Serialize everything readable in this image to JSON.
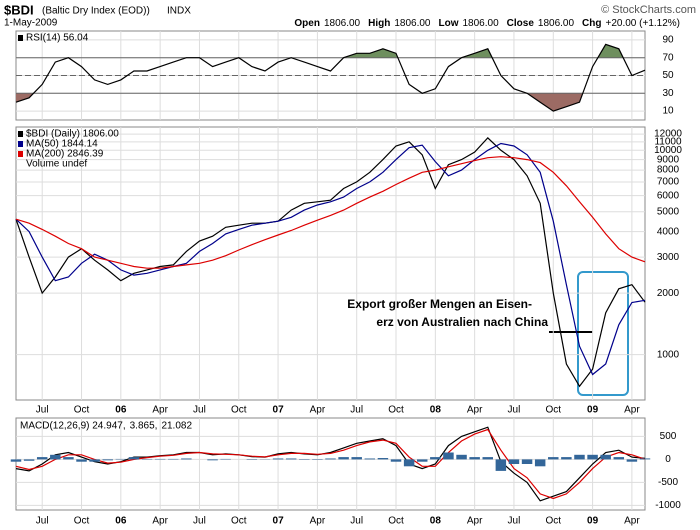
{
  "header": {
    "symbol": "$BDI",
    "name": "(Baltic Dry Index (EOD))",
    "exchange": "INDX",
    "date": "1-May-2009",
    "copyright": "© StockCharts.com",
    "quote": [
      [
        "Open",
        "1806.00"
      ],
      [
        "High",
        "1806.00"
      ],
      [
        "Low",
        "1806.00"
      ],
      [
        "Close",
        "1806.00"
      ],
      [
        "Chg",
        "+20.00 (+1.12%)"
      ]
    ]
  },
  "chart_data": [
    {
      "type": "line",
      "xlim": [
        "2005-05",
        "2009-05"
      ],
      "x": [
        "2005-05",
        "2005-06",
        "2005-07",
        "2005-08",
        "2005-09",
        "2005-10",
        "2005-11",
        "2005-12",
        "2006-01",
        "2006-02",
        "2006-03",
        "2006-04",
        "2006-05",
        "2006-06",
        "2006-07",
        "2006-08",
        "2006-09",
        "2006-10",
        "2006-11",
        "2006-12",
        "2007-01",
        "2007-02",
        "2007-03",
        "2007-04",
        "2007-05",
        "2007-06",
        "2007-07",
        "2007-08",
        "2007-09",
        "2007-10",
        "2007-11",
        "2007-12",
        "2008-01",
        "2008-02",
        "2008-03",
        "2008-04",
        "2008-05",
        "2008-06",
        "2008-07",
        "2008-08",
        "2008-09",
        "2008-10",
        "2008-11",
        "2008-12",
        "2009-01",
        "2009-02",
        "2009-03",
        "2009-04",
        "2009-05"
      ],
      "ylim": [
        0,
        100
      ],
      "yticks": [
        10,
        30,
        50,
        70,
        90
      ],
      "overbought": 70,
      "oversold": 30,
      "midline": 50,
      "overbought_color": "#6e8f5e",
      "oversold_color": "#9c6b64",
      "series": [
        {
          "name": "RSI(14) 56.04",
          "color": "#000000",
          "values": [
            20,
            25,
            40,
            65,
            70,
            60,
            45,
            40,
            45,
            55,
            55,
            60,
            65,
            70,
            70,
            60,
            65,
            70,
            60,
            55,
            65,
            70,
            65,
            60,
            55,
            70,
            75,
            75,
            80,
            75,
            40,
            30,
            35,
            60,
            70,
            75,
            80,
            50,
            35,
            30,
            20,
            10,
            15,
            20,
            60,
            85,
            80,
            50,
            56
          ]
        }
      ]
    },
    {
      "type": "line",
      "log": true,
      "xlim": [
        "2005-05",
        "2009-05"
      ],
      "x": [
        "2005-05",
        "2005-06",
        "2005-07",
        "2005-08",
        "2005-09",
        "2005-10",
        "2005-11",
        "2005-12",
        "2006-01",
        "2006-02",
        "2006-03",
        "2006-04",
        "2006-05",
        "2006-06",
        "2006-07",
        "2006-08",
        "2006-09",
        "2006-10",
        "2006-11",
        "2006-12",
        "2007-01",
        "2007-02",
        "2007-03",
        "2007-04",
        "2007-05",
        "2007-06",
        "2007-07",
        "2007-08",
        "2007-09",
        "2007-10",
        "2007-11",
        "2007-12",
        "2008-01",
        "2008-02",
        "2008-03",
        "2008-04",
        "2008-05",
        "2008-06",
        "2008-07",
        "2008-08",
        "2008-09",
        "2008-10",
        "2008-11",
        "2008-12",
        "2009-01",
        "2009-02",
        "2009-03",
        "2009-04",
        "2009-05"
      ],
      "xticks": [
        {
          "value": "2005-07",
          "label": "Jul"
        },
        {
          "value": "2005-10",
          "label": "Oct"
        },
        {
          "value": "2006-01",
          "label": "06"
        },
        {
          "value": "2006-04",
          "label": "Apr"
        },
        {
          "value": "2006-07",
          "label": "Jul"
        },
        {
          "value": "2006-10",
          "label": "Oct"
        },
        {
          "value": "2007-01",
          "label": "07"
        },
        {
          "value": "2007-04",
          "label": "Apr"
        },
        {
          "value": "2007-07",
          "label": "Jul"
        },
        {
          "value": "2007-10",
          "label": "Oct"
        },
        {
          "value": "2008-01",
          "label": "08"
        },
        {
          "value": "2008-04",
          "label": "Apr"
        },
        {
          "value": "2008-07",
          "label": "Jul"
        },
        {
          "value": "2008-10",
          "label": "Oct"
        },
        {
          "value": "2009-01",
          "label": "09"
        },
        {
          "value": "2009-04",
          "label": "Apr"
        }
      ],
      "ylim": [
        600,
        13000
      ],
      "yticks": [
        1000,
        2000,
        3000,
        4000,
        5000,
        6000,
        7000,
        8000,
        9000,
        10000,
        11000,
        12000
      ],
      "legend_extra": "Volume undef",
      "annotations": [
        "Export großer Mengen an Eisen-",
        "erz von Australien nach China"
      ],
      "series": [
        {
          "name": "$BDI (Daily) 1806.00",
          "color": "#000000",
          "values": [
            4600,
            3000,
            2000,
            2400,
            3000,
            3300,
            2900,
            2600,
            2300,
            2500,
            2600,
            2700,
            2750,
            3200,
            3600,
            3800,
            4200,
            4300,
            4400,
            4400,
            4500,
            5100,
            5500,
            5600,
            5700,
            6500,
            7000,
            7800,
            9000,
            10500,
            11000,
            9500,
            6500,
            8500,
            9000,
            9800,
            11500,
            10000,
            9000,
            7500,
            5500,
            2000,
            900,
            700,
            850,
            1600,
            2100,
            2200,
            1806
          ]
        },
        {
          "name": "MA(50) 1844.14",
          "color": "#00008b",
          "values": [
            4600,
            4000,
            3000,
            2300,
            2400,
            2800,
            3100,
            2900,
            2600,
            2450,
            2500,
            2600,
            2700,
            2800,
            3200,
            3500,
            3900,
            4100,
            4300,
            4400,
            4500,
            4700,
            5100,
            5400,
            5600,
            5900,
            6500,
            7000,
            7800,
            9000,
            10300,
            10600,
            8800,
            7500,
            8000,
            9000,
            10000,
            10800,
            10500,
            9500,
            7800,
            4500,
            2200,
            1100,
            800,
            900,
            1400,
            1800,
            1844.14
          ]
        },
        {
          "name": "MA(200) 2846.39",
          "color": "#dd0000",
          "values": [
            4600,
            4400,
            4100,
            3800,
            3500,
            3300,
            3000,
            2900,
            2800,
            2700,
            2650,
            2650,
            2700,
            2750,
            2800,
            2900,
            3050,
            3250,
            3450,
            3650,
            3850,
            4050,
            4300,
            4550,
            4800,
            5100,
            5500,
            5900,
            6300,
            6800,
            7300,
            7800,
            8000,
            8300,
            8600,
            8900,
            9200,
            9300,
            9200,
            9000,
            8700,
            7800,
            6700,
            5600,
            4700,
            3900,
            3300,
            3000,
            2846.39
          ]
        }
      ]
    },
    {
      "type": "line",
      "xlim": [
        "2005-05",
        "2009-05"
      ],
      "x": [
        "2005-05",
        "2005-06",
        "2005-07",
        "2005-08",
        "2005-09",
        "2005-10",
        "2005-11",
        "2005-12",
        "2006-01",
        "2006-02",
        "2006-03",
        "2006-04",
        "2006-05",
        "2006-06",
        "2006-07",
        "2006-08",
        "2006-09",
        "2006-10",
        "2006-11",
        "2006-12",
        "2007-01",
        "2007-02",
        "2007-03",
        "2007-04",
        "2007-05",
        "2007-06",
        "2007-07",
        "2007-08",
        "2007-09",
        "2007-10",
        "2007-11",
        "2007-12",
        "2008-01",
        "2008-02",
        "2008-03",
        "2008-04",
        "2008-05",
        "2008-06",
        "2008-07",
        "2008-08",
        "2008-09",
        "2008-10",
        "2008-11",
        "2008-12",
        "2009-01",
        "2009-02",
        "2009-03",
        "2009-04",
        "2009-05"
      ],
      "xticks": [
        {
          "value": "2005-07",
          "label": "Jul"
        },
        {
          "value": "2005-10",
          "label": "Oct"
        },
        {
          "value": "2006-01",
          "label": "06"
        },
        {
          "value": "2006-04",
          "label": "Apr"
        },
        {
          "value": "2006-07",
          "label": "Jul"
        },
        {
          "value": "2006-10",
          "label": "Oct"
        },
        {
          "value": "2007-01",
          "label": "07"
        },
        {
          "value": "2007-04",
          "label": "Apr"
        },
        {
          "value": "2007-07",
          "label": "Jul"
        },
        {
          "value": "2007-10",
          "label": "Oct"
        },
        {
          "value": "2008-01",
          "label": "08"
        },
        {
          "value": "2008-04",
          "label": "Apr"
        },
        {
          "value": "2008-07",
          "label": "Jul"
        },
        {
          "value": "2008-10",
          "label": "Oct"
        },
        {
          "value": "2009-01",
          "label": "09"
        },
        {
          "value": "2009-04",
          "label": "Apr"
        }
      ],
      "ylim": [
        -1100,
        900
      ],
      "yticks": [
        -1000,
        -500,
        0,
        500
      ],
      "series": [
        {
          "name": "MACD(12,26,9) 24.947,",
          "color": "#000000",
          "values": [
            -200,
            -250,
            -100,
            100,
            150,
            50,
            -50,
            -100,
            -50,
            50,
            50,
            80,
            100,
            150,
            150,
            100,
            120,
            100,
            60,
            50,
            120,
            150,
            120,
            100,
            150,
            250,
            350,
            400,
            450,
            300,
            -100,
            -200,
            -100,
            300,
            500,
            600,
            700,
            -50,
            -300,
            -500,
            -900,
            -800,
            -700,
            -400,
            -100,
            150,
            200,
            50,
            24.947
          ]
        },
        {
          "name": "3.865,",
          "color": "#dd0000",
          "values": [
            -150,
            -220,
            -150,
            0,
            100,
            100,
            0,
            -80,
            -60,
            0,
            40,
            70,
            90,
            130,
            150,
            120,
            110,
            100,
            70,
            55,
            100,
            130,
            130,
            110,
            130,
            200,
            300,
            380,
            420,
            350,
            50,
            -150,
            -150,
            150,
            400,
            550,
            650,
            200,
            -200,
            -400,
            -750,
            -850,
            -750,
            -500,
            -200,
            50,
            150,
            100,
            3.865
          ]
        },
        {
          "name": "21.082",
          "color": "#336699",
          "type": "bar",
          "values": [
            -50,
            -30,
            50,
            100,
            50,
            -50,
            -50,
            -20,
            10,
            50,
            10,
            10,
            10,
            20,
            0,
            -20,
            10,
            0,
            -10,
            -5,
            20,
            20,
            -10,
            -10,
            20,
            50,
            50,
            20,
            30,
            -50,
            -150,
            -50,
            50,
            150,
            100,
            50,
            50,
            -250,
            -100,
            -100,
            -150,
            50,
            50,
            100,
            100,
            100,
            50,
            -50,
            21.082
          ]
        }
      ]
    }
  ]
}
